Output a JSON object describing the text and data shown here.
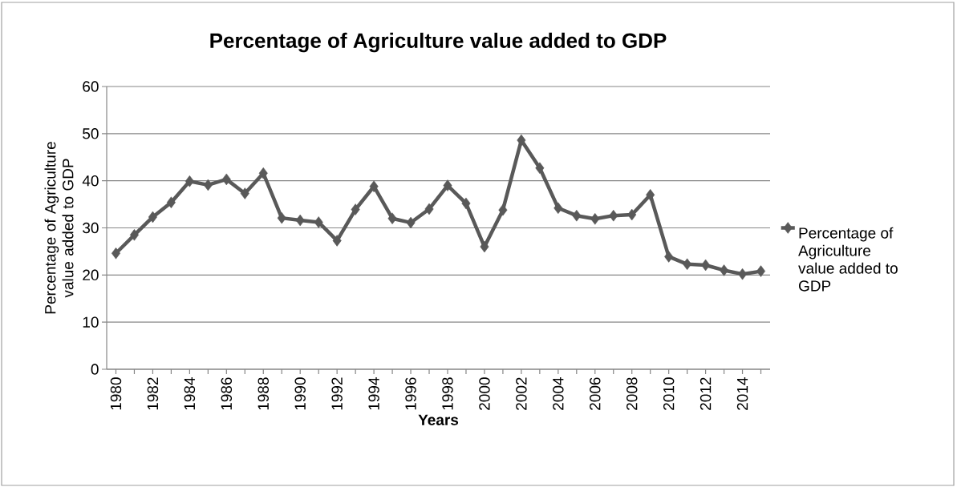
{
  "chart_data": {
    "type": "line",
    "title": "Percentage of Agriculture value added to GDP",
    "xlabel": "Years",
    "ylabel": "Percentage of Agriculture value added to GDP",
    "categories": [
      "1980",
      null,
      "1982",
      null,
      "1984",
      null,
      "1986",
      null,
      "1988",
      null,
      "1990",
      null,
      "1992",
      null,
      "1994",
      null,
      "1996",
      null,
      "1998",
      null,
      "2000",
      null,
      "2002",
      null,
      "2004",
      null,
      "2006",
      null,
      "2008",
      null,
      "2010",
      null,
      "2012",
      null,
      "2014",
      null
    ],
    "series": [
      {
        "name": "Percentage of Agriculture value added to GDP",
        "color": "#595959",
        "values": [
          24.6,
          28.5,
          32.3,
          35.4,
          39.9,
          39.1,
          40.3,
          37.3,
          41.6,
          32.1,
          31.6,
          31.2,
          27.3,
          33.9,
          38.8,
          32.0,
          31.1,
          34.0,
          39.0,
          35.2,
          26.0,
          33.8,
          48.6,
          42.7,
          34.2,
          32.6,
          31.9,
          32.6,
          32.8,
          37.0,
          23.9,
          22.3,
          22.1,
          21.0,
          20.2,
          20.8
        ]
      }
    ],
    "ylim": [
      0,
      60
    ],
    "yticks": [
      0,
      10,
      20,
      30,
      40,
      50,
      60
    ],
    "grid": "y",
    "legend": "right",
    "marker": "diamond",
    "line_style": "solid"
  }
}
